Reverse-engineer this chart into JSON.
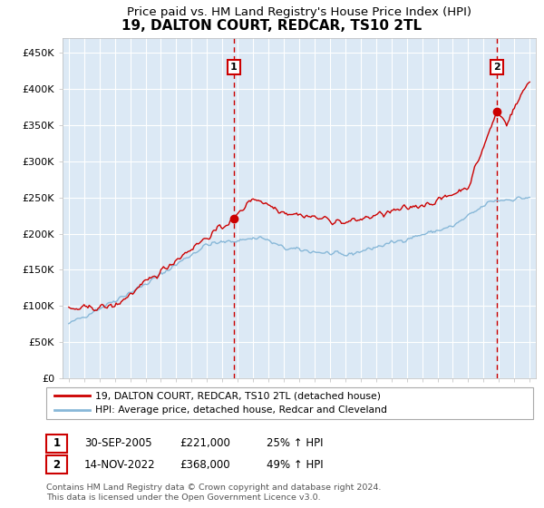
{
  "title": "19, DALTON COURT, REDCAR, TS10 2TL",
  "subtitle": "Price paid vs. HM Land Registry's House Price Index (HPI)",
  "title_fontsize": 11,
  "subtitle_fontsize": 9.5,
  "bg_color": "#dce9f5",
  "fig_bg_color": "#ffffff",
  "grid_color": "#ffffff",
  "ylim": [
    0,
    470000
  ],
  "yticks": [
    0,
    50000,
    100000,
    150000,
    200000,
    250000,
    300000,
    350000,
    400000,
    450000
  ],
  "ytick_labels": [
    "£0",
    "£50K",
    "£100K",
    "£150K",
    "£200K",
    "£250K",
    "£300K",
    "£350K",
    "£400K",
    "£450K"
  ],
  "xlim_start": 1994.6,
  "xlim_end": 2025.4,
  "sale1_x": 2005.75,
  "sale1_y": 221000,
  "sale2_x": 2022.87,
  "sale2_y": 368000,
  "red_color": "#cc0000",
  "blue_color": "#88b8d8",
  "dot_color": "#cc0000",
  "legend1": "19, DALTON COURT, REDCAR, TS10 2TL (detached house)",
  "legend2": "HPI: Average price, detached house, Redcar and Cleveland",
  "annotation1_date": "30-SEP-2005",
  "annotation1_price": "£221,000",
  "annotation1_hpi": "25% ↑ HPI",
  "annotation2_date": "14-NOV-2022",
  "annotation2_price": "£368,000",
  "annotation2_hpi": "49% ↑ HPI",
  "footer": "Contains HM Land Registry data © Crown copyright and database right 2024.\nThis data is licensed under the Open Government Licence v3.0."
}
